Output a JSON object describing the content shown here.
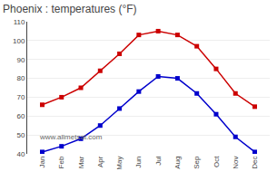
{
  "chart_data": {
    "type": "line",
    "title": "Phoenix : temperatures (°F)",
    "categories": [
      "Jan",
      "Feb",
      "Mar",
      "Apr",
      "May",
      "Jun",
      "Jul",
      "Aug",
      "Sep",
      "Oct",
      "Nov",
      "Dec"
    ],
    "series": [
      {
        "color": "#cc0000",
        "marker": "square",
        "values": [
          66,
          70,
          75,
          84,
          93,
          103,
          105,
          103,
          97,
          85,
          72,
          65
        ]
      },
      {
        "color": "#0000cc",
        "marker": "square",
        "values": [
          41,
          44,
          48,
          55,
          64,
          73,
          81,
          80,
          72,
          61,
          49,
          41
        ]
      }
    ],
    "ylim": [
      40,
      110
    ],
    "yticks": [
      40,
      50,
      60,
      70,
      80,
      90,
      100,
      110
    ],
    "grid": true,
    "annotation": "www.allmetsat.com"
  }
}
